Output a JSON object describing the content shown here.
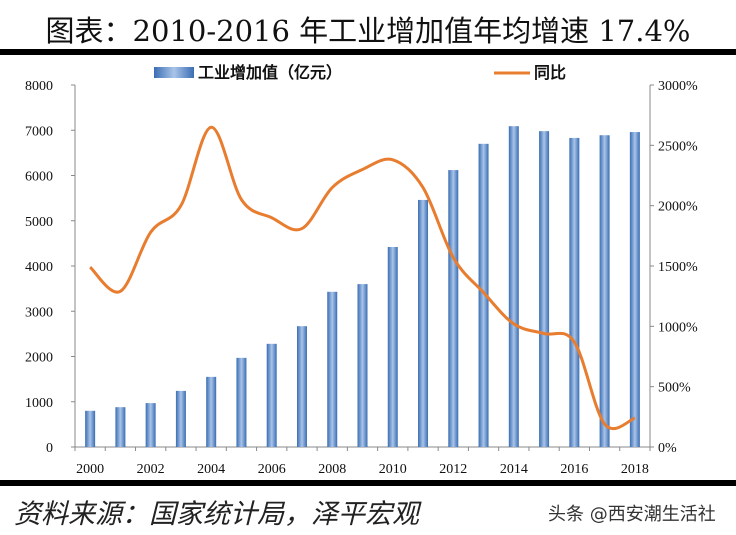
{
  "title": "图表：2010-2016 年工业增加值年均增速 17.4%",
  "source": "资料来源：国家统计局，泽平宏观",
  "watermark": "头条 @西安潮生活社",
  "colors": {
    "bar": "#4a7ebb",
    "line": "#e87d2f"
  },
  "chart_data": {
    "type": "bar+line",
    "categories": [
      2000,
      2001,
      2002,
      2003,
      2004,
      2005,
      2006,
      2007,
      2008,
      2009,
      2010,
      2011,
      2012,
      2013,
      2014,
      2015,
      2016,
      2017,
      2018
    ],
    "x_tick_labels": [
      "2000",
      "2002",
      "2004",
      "2006",
      "2008",
      "2010",
      "2012",
      "2014",
      "2016",
      "2018"
    ],
    "series": [
      {
        "name": "工业增加值（亿元）",
        "type": "bar",
        "axis": "left",
        "values": [
          800,
          880,
          970,
          1240,
          1550,
          1970,
          2280,
          2670,
          3430,
          3600,
          4420,
          5460,
          6120,
          6700,
          7090,
          6980,
          6830,
          6890,
          6960
        ]
      },
      {
        "name": "同比",
        "type": "line",
        "axis": "right",
        "values": [
          1490,
          1290,
          1780,
          2000,
          2650,
          2050,
          1900,
          1810,
          2150,
          2300,
          2380,
          2150,
          1570,
          1280,
          1020,
          940,
          870,
          190,
          240
        ]
      }
    ],
    "left_axis": {
      "ylim": [
        0,
        8000
      ],
      "ticks": [
        "0",
        "1000",
        "2000",
        "3000",
        "4000",
        "5000",
        "6000",
        "7000",
        "8000"
      ]
    },
    "right_axis": {
      "ylim": [
        0,
        3000
      ],
      "ticks": [
        "0%",
        "500%",
        "1000%",
        "1500%",
        "2000%",
        "2500%",
        "3000%"
      ]
    },
    "legend": "top",
    "grid": false
  }
}
